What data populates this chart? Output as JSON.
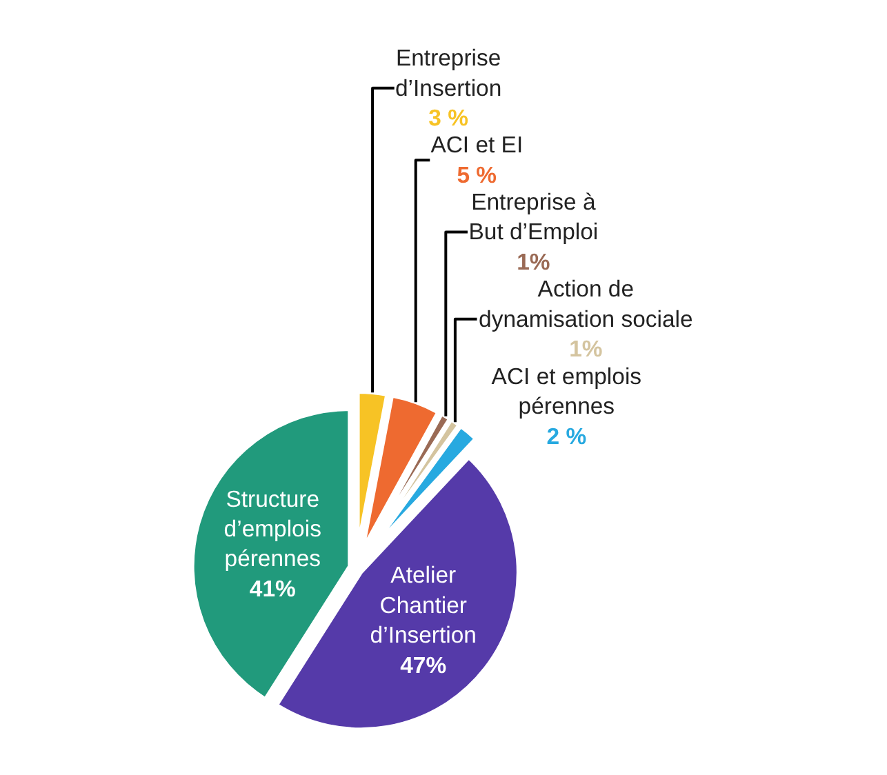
{
  "chart_data": {
    "type": "pie",
    "categories": [
      "Entreprise\nd’Insertion",
      "ACI et EI",
      "Entreprise à\nBut d’Emploi",
      "Action de\ndynamisation sociale",
      "ACI et emplois\npérennes",
      "Atelier\nChantier\nd’Insertion",
      "Structure\nd’emplois\npérennes"
    ],
    "values": [
      3,
      5,
      1,
      1,
      2,
      47,
      41
    ],
    "colors": [
      "#f7c325",
      "#ee6a30",
      "#9a6a55",
      "#d4c49f",
      "#27a9e0",
      "#553aa9",
      "#219a7c"
    ],
    "value_labels": [
      "3 %",
      "5 %",
      "1%",
      "1%",
      "2 %",
      "47%",
      "41%"
    ],
    "legend": false
  }
}
